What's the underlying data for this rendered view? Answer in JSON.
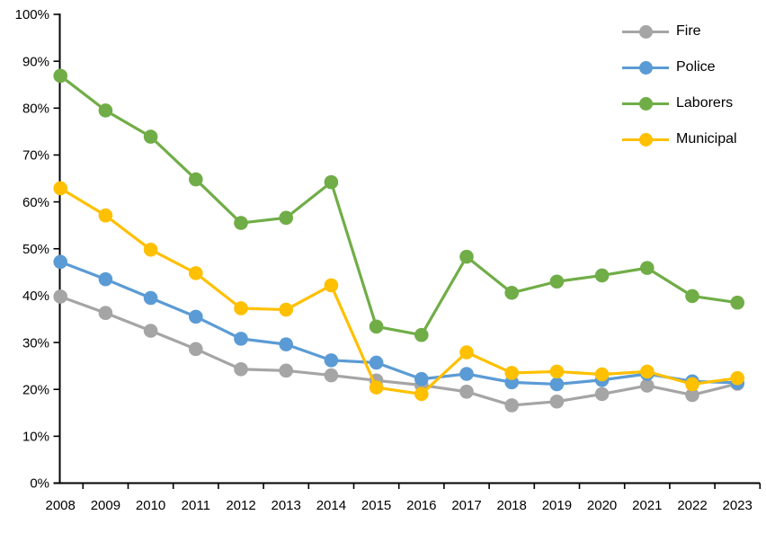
{
  "chart_data": {
    "type": "line",
    "title": "",
    "xlabel": "",
    "ylabel": "",
    "x_labels": [
      "2008",
      "2009",
      "2010",
      "2011",
      "2012",
      "2013",
      "2014",
      "2015",
      "2016",
      "2017",
      "2018",
      "2019",
      "2020",
      "2021",
      "2022",
      "2023"
    ],
    "ylim": [
      0,
      100
    ],
    "ytick_step": 10,
    "ytick_labels": [
      "0%",
      "10%",
      "20%",
      "30%",
      "40%",
      "50%",
      "60%",
      "70%",
      "80%",
      "90%",
      "100%"
    ],
    "grid": false,
    "legend_position": "top-right",
    "axis_color": "#000000",
    "background": "#FFFFFF",
    "series": [
      {
        "name": "Fire",
        "color": "#A5A5A5",
        "values": [
          39.8,
          36.3,
          32.5,
          28.6,
          24.3,
          24.0,
          23.0,
          21.9,
          20.9,
          19.5,
          16.6,
          17.4,
          19.0,
          20.8,
          18.8,
          21.2
        ]
      },
      {
        "name": "Police",
        "color": "#5B9BD5",
        "values": [
          47.2,
          43.5,
          39.5,
          35.5,
          30.8,
          29.6,
          26.2,
          25.7,
          22.2,
          23.3,
          21.5,
          21.1,
          22.0,
          23.3,
          21.7,
          21.4
        ]
      },
      {
        "name": "Laborers",
        "color": "#70AD47",
        "values": [
          86.9,
          79.5,
          73.9,
          64.8,
          55.5,
          56.6,
          64.2,
          33.4,
          31.6,
          48.3,
          40.6,
          43.0,
          44.3,
          45.9,
          39.9,
          38.5
        ]
      },
      {
        "name": "Municipal",
        "color": "#FFC000",
        "values": [
          62.9,
          57.1,
          49.8,
          44.8,
          37.3,
          37.0,
          42.2,
          20.4,
          19.0,
          27.9,
          23.5,
          23.8,
          23.2,
          23.8,
          21.1,
          22.4
        ]
      }
    ]
  }
}
